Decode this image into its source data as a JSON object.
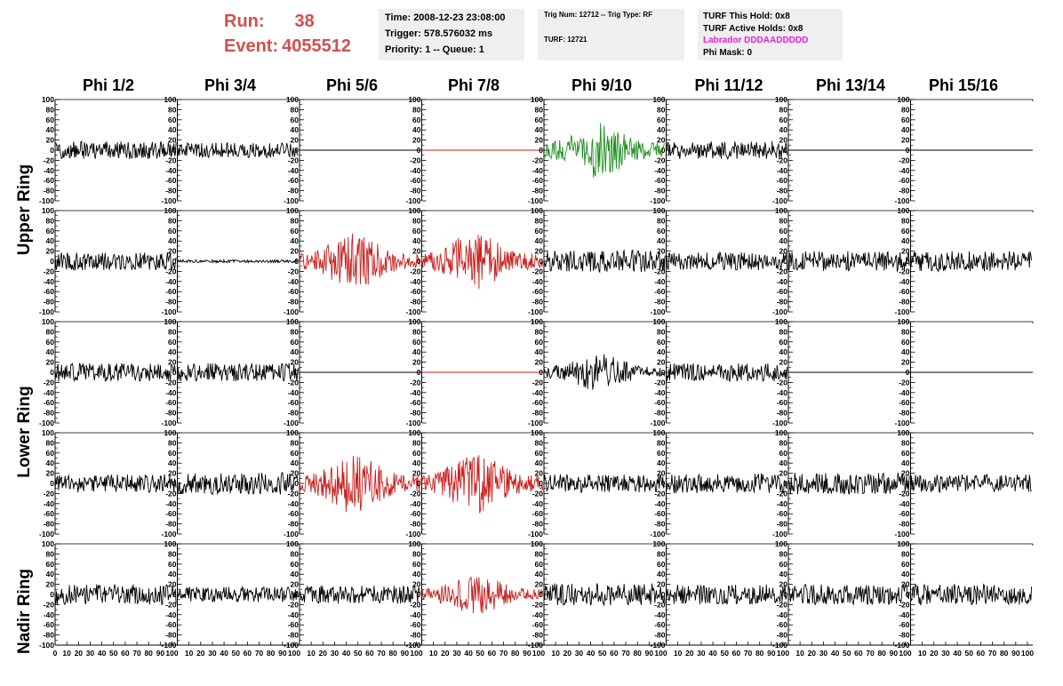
{
  "header": {
    "run_label": "Run:",
    "run_value": "38",
    "event_label": "Event:",
    "event_value": "4055512",
    "colors": {
      "run_event": "#d0504e",
      "labrador": "#e020e0",
      "box_bg": "#efefef"
    }
  },
  "info_box_1": {
    "time": "Time: 2008-12-23 23:08:00",
    "trigger": "Trigger: 578.576032 ms",
    "priority": "Priority: 1 -- Queue: 1"
  },
  "info_box_2": {
    "trig": "Trig Num: 12712 -- Trig Type: RF",
    "turf": "TURF: 12721"
  },
  "info_box_3": {
    "this_hold": "TURF This Hold: 0x8",
    "active_holds": "TURF Active Holds: 0x8",
    "labrador": "Labrador DDDAADDDDD",
    "phi_mask": "Phi Mask: 0"
  },
  "columns": [
    "Phi 1/2",
    "Phi 3/4",
    "Phi 5/6",
    "Phi 7/8",
    "Phi 9/10",
    "Phi 11/12",
    "Phi 13/14",
    "Phi 15/16"
  ],
  "rings": [
    "Upper Ring",
    "Lower Ring",
    "Nadir Ring"
  ],
  "axes": {
    "y_ticks": [
      "100",
      "80",
      "60",
      "40",
      "20",
      "0",
      "-20",
      "-40",
      "-60",
      "-80",
      "-100"
    ],
    "x_ticks": [
      "0",
      "10",
      "20",
      "30",
      "40",
      "50",
      "60",
      "70",
      "80",
      "90",
      "100"
    ]
  },
  "trace_colors": {
    "normal": "#000000",
    "triggered": "#c8201e",
    "highlight": "#1f8f1f"
  },
  "chart_data": {
    "type": "line",
    "x_range": [
      0,
      100
    ],
    "y_range": [
      -100,
      100
    ],
    "rows": [
      {
        "row": 1,
        "ring": "Upper Ring",
        "channels": [
          {
            "phi": "Phi 1/2",
            "color": "normal",
            "style": "noise",
            "amplitude": 18
          },
          {
            "phi": "Phi 3/4",
            "color": "normal",
            "style": "noise",
            "amplitude": 15
          },
          {
            "phi": "Phi 5/6",
            "color": "normal",
            "style": "flat",
            "amplitude": 0
          },
          {
            "phi": "Phi 7/8",
            "color": "triggered",
            "style": "flat",
            "amplitude": 0
          },
          {
            "phi": "Phi 9/10",
            "color": "highlight",
            "style": "pulse",
            "amplitude": 55
          },
          {
            "phi": "Phi 11/12",
            "color": "normal",
            "style": "noise",
            "amplitude": 18
          },
          {
            "phi": "Phi 13/14",
            "color": "normal",
            "style": "flat",
            "amplitude": 0
          },
          {
            "phi": "Phi 15/16",
            "color": "normal",
            "style": "flat",
            "amplitude": 0
          }
        ]
      },
      {
        "row": 2,
        "ring": "Upper Ring",
        "channels": [
          {
            "phi": "Phi 1/2",
            "color": "normal",
            "style": "noise",
            "amplitude": 18
          },
          {
            "phi": "Phi 3/4",
            "color": "normal",
            "style": "noise",
            "amplitude": 3
          },
          {
            "phi": "Phi 5/6",
            "color": "triggered",
            "style": "pulse",
            "amplitude": 55
          },
          {
            "phi": "Phi 7/8",
            "color": "triggered",
            "style": "pulse",
            "amplitude": 60
          },
          {
            "phi": "Phi 9/10",
            "color": "normal",
            "style": "noise",
            "amplitude": 22
          },
          {
            "phi": "Phi 11/12",
            "color": "normal",
            "style": "noise",
            "amplitude": 18
          },
          {
            "phi": "Phi 13/14",
            "color": "normal",
            "style": "noise",
            "amplitude": 20
          },
          {
            "phi": "Phi 15/16",
            "color": "normal",
            "style": "noise",
            "amplitude": 20
          }
        ]
      },
      {
        "row": 3,
        "ring": "Lower Ring",
        "channels": [
          {
            "phi": "Phi 1/2",
            "color": "normal",
            "style": "noise",
            "amplitude": 18
          },
          {
            "phi": "Phi 3/4",
            "color": "normal",
            "style": "noise",
            "amplitude": 18
          },
          {
            "phi": "Phi 5/6",
            "color": "normal",
            "style": "flat",
            "amplitude": 0
          },
          {
            "phi": "Phi 7/8",
            "color": "triggered",
            "style": "flat",
            "amplitude": 0
          },
          {
            "phi": "Phi 9/10",
            "color": "normal",
            "style": "pulse",
            "amplitude": 38
          },
          {
            "phi": "Phi 11/12",
            "color": "normal",
            "style": "noise",
            "amplitude": 18
          },
          {
            "phi": "Phi 13/14",
            "color": "normal",
            "style": "flat",
            "amplitude": 0
          },
          {
            "phi": "Phi 15/16",
            "color": "normal",
            "style": "flat",
            "amplitude": 0
          }
        ]
      },
      {
        "row": 4,
        "ring": "Lower Ring",
        "channels": [
          {
            "phi": "Phi 1/2",
            "color": "normal",
            "style": "noise",
            "amplitude": 18
          },
          {
            "phi": "Phi 3/4",
            "color": "normal",
            "style": "noise",
            "amplitude": 22
          },
          {
            "phi": "Phi 5/6",
            "color": "triggered",
            "style": "pulse",
            "amplitude": 60
          },
          {
            "phi": "Phi 7/8",
            "color": "triggered",
            "style": "pulse",
            "amplitude": 60
          },
          {
            "phi": "Phi 9/10",
            "color": "normal",
            "style": "noise",
            "amplitude": 18
          },
          {
            "phi": "Phi 11/12",
            "color": "normal",
            "style": "noise",
            "amplitude": 20
          },
          {
            "phi": "Phi 13/14",
            "color": "normal",
            "style": "noise",
            "amplitude": 22
          },
          {
            "phi": "Phi 15/16",
            "color": "normal",
            "style": "noise",
            "amplitude": 18
          }
        ]
      },
      {
        "row": 5,
        "ring": "Nadir Ring",
        "channels": [
          {
            "phi": "Phi 1/2",
            "color": "normal",
            "style": "noise",
            "amplitude": 20
          },
          {
            "phi": "Phi 3/4",
            "color": "normal",
            "style": "noise",
            "amplitude": 15
          },
          {
            "phi": "Phi 5/6",
            "color": "normal",
            "style": "noise",
            "amplitude": 18
          },
          {
            "phi": "Phi 7/8",
            "color": "triggered",
            "style": "pulse",
            "amplitude": 40
          },
          {
            "phi": "Phi 9/10",
            "color": "normal",
            "style": "noise",
            "amplitude": 22
          },
          {
            "phi": "Phi 11/12",
            "color": "normal",
            "style": "noise",
            "amplitude": 20
          },
          {
            "phi": "Phi 13/14",
            "color": "normal",
            "style": "noise",
            "amplitude": 20
          },
          {
            "phi": "Phi 15/16",
            "color": "normal",
            "style": "noise",
            "amplitude": 20
          }
        ]
      }
    ]
  }
}
